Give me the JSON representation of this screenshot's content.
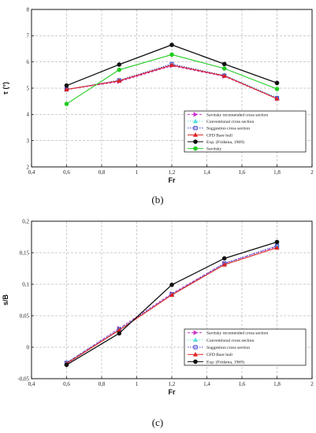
{
  "chart_data": [
    {
      "type": "line",
      "panel_label": "(b)",
      "xlabel": "Fr",
      "ylabel": "τ (°)",
      "xlim": [
        0.4,
        2
      ],
      "ylim": [
        2,
        8
      ],
      "x_ticks": [
        "0,4",
        "0,6",
        "0,8",
        "1",
        "1,2",
        "1,4",
        "1,6",
        "1,8",
        "2"
      ],
      "y_ticks": [
        "2",
        "3",
        "4",
        "5",
        "6",
        "7",
        "8"
      ],
      "grid": true,
      "legend_position": "bottom-right",
      "x": [
        0.6,
        0.9,
        1.2,
        1.5,
        1.8
      ],
      "series": [
        {
          "name": "Savitsky recomended cross section",
          "color": "#cc33cc",
          "marker": "triangle-right",
          "dash": "3,2",
          "values": [
            4.95,
            5.25,
            5.85,
            5.45,
            4.6
          ]
        },
        {
          "name": "Conventional cross section",
          "color": "#55dddd",
          "marker": "triangle-up",
          "dash": "1,2",
          "values": [
            4.95,
            5.3,
            5.9,
            5.5,
            4.65
          ]
        },
        {
          "name": "Suggestion cross section",
          "color": "#4444cc",
          "marker": "square",
          "dash": "1.5,1.5",
          "values": [
            4.95,
            5.3,
            5.92,
            5.48,
            4.62
          ]
        },
        {
          "name": "CFD Bare hull",
          "color": "#dd2222",
          "marker": "triangle-up",
          "dash": "",
          "values": [
            4.95,
            5.28,
            5.88,
            5.47,
            4.6
          ]
        },
        {
          "name": "Exp. (Fridsma, 1969)",
          "color": "#111111",
          "marker": "circle",
          "dash": "",
          "values": [
            5.1,
            5.9,
            6.65,
            5.92,
            5.2
          ]
        },
        {
          "name": "Savitsky",
          "color": "#22cc22",
          "marker": "circle",
          "dash": "",
          "values": [
            4.4,
            5.7,
            6.28,
            5.75,
            4.97
          ]
        }
      ]
    },
    {
      "type": "line",
      "panel_label": "(c)",
      "xlabel": "Fr",
      "ylabel": "s/B",
      "xlim": [
        0.4,
        2
      ],
      "ylim": [
        -0.05,
        0.2
      ],
      "x_ticks": [
        "0,4",
        "0,6",
        "0,8",
        "1",
        "1,2",
        "1,4",
        "1,6",
        "1,8",
        "2"
      ],
      "y_ticks": [
        "-0,05",
        "0",
        "0,05",
        "0,1",
        "0,15",
        "0,2"
      ],
      "grid": true,
      "legend_position": "bottom-right",
      "x": [
        0.6,
        0.9,
        1.2,
        1.5,
        1.8
      ],
      "series": [
        {
          "name": "Savitsky recomended cross section",
          "color": "#cc33cc",
          "marker": "triangle-right",
          "dash": "3,2",
          "values": [
            -0.025,
            0.03,
            0.085,
            0.133,
            0.16
          ]
        },
        {
          "name": "Conventional cross section",
          "color": "#55dddd",
          "marker": "triangle-up",
          "dash": "1,2",
          "values": [
            -0.024,
            0.029,
            0.084,
            0.132,
            0.161
          ]
        },
        {
          "name": "Suggestion cross section",
          "color": "#4444cc",
          "marker": "square",
          "dash": "1.5,1.5",
          "values": [
            -0.025,
            0.028,
            0.084,
            0.133,
            0.161
          ]
        },
        {
          "name": "CFD Bare hull",
          "color": "#dd2222",
          "marker": "triangle-up",
          "dash": "",
          "values": [
            -0.026,
            0.027,
            0.083,
            0.131,
            0.158
          ]
        },
        {
          "name": "Exp. (Fridsma, 1969)",
          "color": "#111111",
          "marker": "circle",
          "dash": "",
          "values": [
            -0.028,
            0.022,
            0.099,
            0.141,
            0.167
          ]
        }
      ]
    }
  ]
}
